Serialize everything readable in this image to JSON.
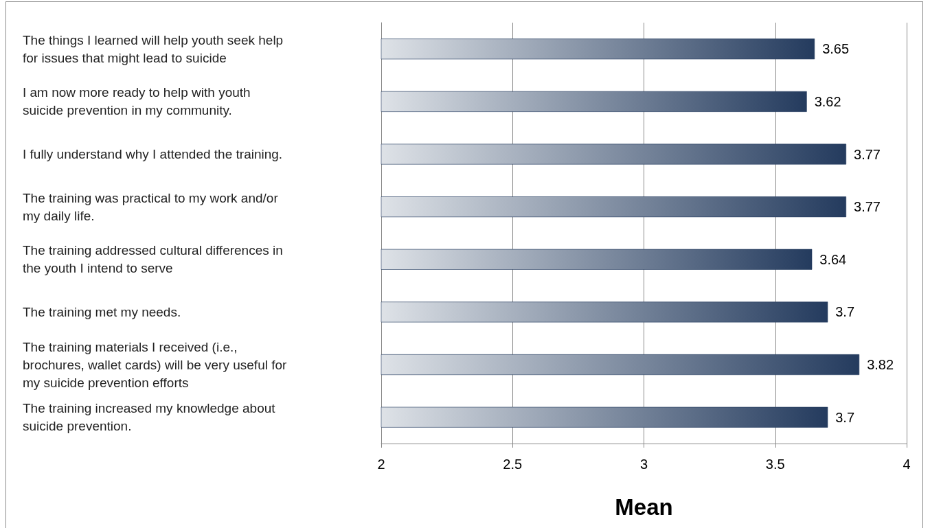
{
  "chart_data": {
    "type": "bar",
    "orientation": "horizontal",
    "xlabel": "Mean",
    "categories": [
      "The things I learned will help youth seek help for issues that might lead to suicide",
      "I am now more ready to help with youth suicide prevention in my community.",
      "I fully understand why I attended the training.",
      "The training was practical to my work and/or my daily life.",
      "The training addressed cultural differences in the youth I intend to serve",
      "The training met my needs.",
      "The training materials I received (i.e., brochures, wallet cards) will be very useful for my suicide prevention efforts",
      "The training increased my knowledge about suicide prevention."
    ],
    "values": [
      3.65,
      3.62,
      3.77,
      3.77,
      3.64,
      3.7,
      3.82,
      3.7
    ],
    "color": "#243b5e",
    "xlim": [
      2,
      4
    ],
    "xticks": [
      2,
      2.5,
      3,
      3.5,
      4
    ],
    "grid": "x",
    "data_labels": true
  }
}
